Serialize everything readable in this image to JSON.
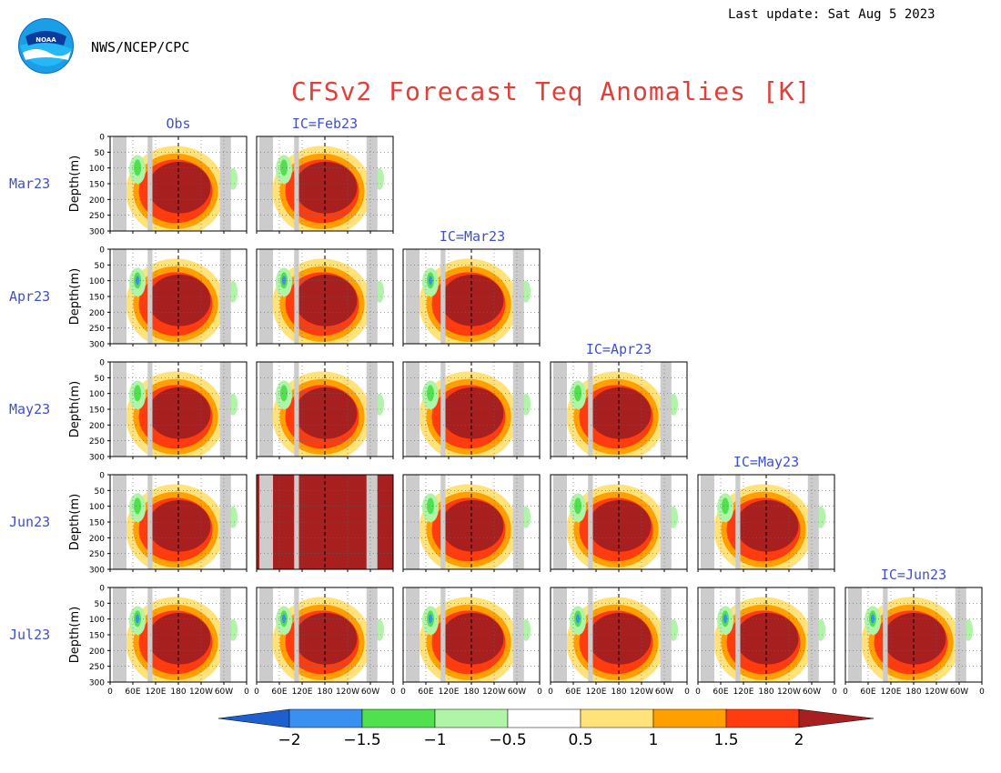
{
  "header": {
    "last_update": "Last update: Sat Aug 5 2023",
    "agency": "NWS/NCEP/CPC",
    "logo_text": "NOAA"
  },
  "chart_data": {
    "type": "heatmap",
    "title": "CFSv2 Forecast Teq Anomalies [K]",
    "ylabel": "Depth(m)",
    "x_ticks": [
      "0",
      "60E",
      "120E",
      "180",
      "120W",
      "60W",
      "0"
    ],
    "y_ticks": [
      "0",
      "50",
      "100",
      "150",
      "200",
      "250",
      "300"
    ],
    "ylim": [
      0,
      300
    ],
    "rows": [
      "Mar23",
      "Apr23",
      "May23",
      "Jun23",
      "Jul23"
    ],
    "column_labels": [
      "Obs",
      "IC=Feb23",
      "IC=Mar23",
      "IC=Apr23",
      "IC=May23",
      "IC=Jun23"
    ],
    "colorbar": {
      "ticks": [
        "−2",
        "−1.5",
        "−1",
        "−0.5",
        "0.5",
        "1",
        "1.5",
        "2"
      ],
      "colors": [
        "#1e5fd0",
        "#3a90f0",
        "#50e050",
        "#b0f4a8",
        "#ffffff",
        "#ffe27a",
        "#ffa000",
        "#ff3c10",
        "#a81f1f"
      ]
    }
  }
}
